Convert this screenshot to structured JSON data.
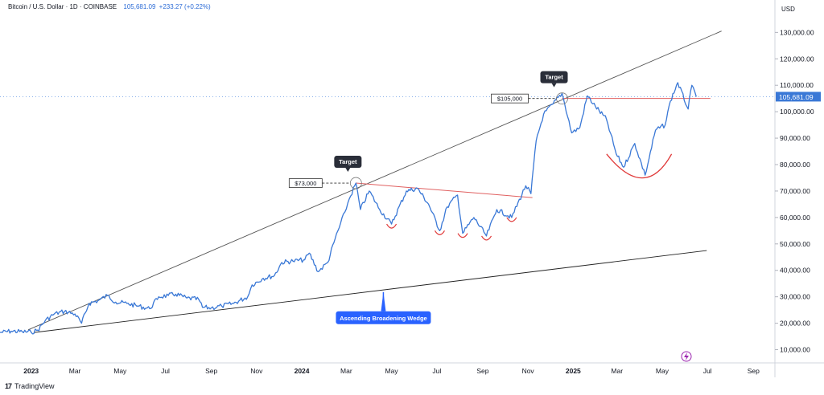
{
  "header": {
    "symbol_line": "Bitcoin / U.S. Dollar · 1D · COINBASE",
    "last_price": "105,681.09",
    "change": "+233.27 (+0.22%)"
  },
  "brand": {
    "logo": "17",
    "name": "TradingView"
  },
  "colors": {
    "price_line": "#3a78d6",
    "trend_line": "#555555",
    "resistance": "#e06060",
    "cup": "#e03a3a",
    "axis_text": "#131722",
    "grid": "#e6e6e6",
    "callout": "#2a2e39",
    "wedge_badge": "#2962ff"
  },
  "chart_data": {
    "type": "line",
    "title": "Bitcoin / U.S. Dollar · 1D · COINBASE",
    "currency_label": "USD",
    "xlim": [
      "2022-11-20",
      "2025-09-30"
    ],
    "ylim": [
      5000,
      138000
    ],
    "y_ticks": [
      10000,
      20000,
      30000,
      40000,
      50000,
      60000,
      70000,
      80000,
      90000,
      100000,
      110000,
      120000,
      130000
    ],
    "y_tick_labels": [
      "10,000.00",
      "20,000.00",
      "30,000.00",
      "40,000.00",
      "50,000.00",
      "60,000.00",
      "70,000.00",
      "80,000.00",
      "90,000.00",
      "100,000.00",
      "110,000.00",
      "120,000.00",
      "130,000.00"
    ],
    "x_ticks": [
      {
        "date": "2023-01-01",
        "label": "2023",
        "bold": true
      },
      {
        "date": "2023-03-01",
        "label": "Mar"
      },
      {
        "date": "2023-05-01",
        "label": "May"
      },
      {
        "date": "2023-07-01",
        "label": "Jul"
      },
      {
        "date": "2023-09-01",
        "label": "Sep"
      },
      {
        "date": "2023-11-01",
        "label": "Nov"
      },
      {
        "date": "2024-01-01",
        "label": "2024",
        "bold": true
      },
      {
        "date": "2024-03-01",
        "label": "Mar"
      },
      {
        "date": "2024-05-01",
        "label": "May"
      },
      {
        "date": "2024-07-01",
        "label": "Jul"
      },
      {
        "date": "2024-09-01",
        "label": "Sep"
      },
      {
        "date": "2024-11-01",
        "label": "Nov"
      },
      {
        "date": "2025-01-01",
        "label": "2025",
        "bold": true
      },
      {
        "date": "2025-03-01",
        "label": "Mar"
      },
      {
        "date": "2025-05-01",
        "label": "May"
      },
      {
        "date": "2025-07-01",
        "label": "Jul"
      },
      {
        "date": "2025-09-01",
        "label": "Sep"
      }
    ],
    "series": [
      {
        "values": [
          [
            "2022-11-20",
            16500
          ],
          [
            "2022-12-05",
            17000
          ],
          [
            "2022-12-20",
            16800
          ],
          [
            "2023-01-01",
            16600
          ],
          [
            "2023-01-10",
            17400
          ],
          [
            "2023-01-20",
            21000
          ],
          [
            "2023-02-01",
            23500
          ],
          [
            "2023-02-15",
            24500
          ],
          [
            "2023-03-01",
            23500
          ],
          [
            "2023-03-10",
            20000
          ],
          [
            "2023-03-20",
            27500
          ],
          [
            "2023-04-01",
            28500
          ],
          [
            "2023-04-14",
            30500
          ],
          [
            "2023-04-25",
            28000
          ],
          [
            "2023-05-10",
            27500
          ],
          [
            "2023-05-25",
            26500
          ],
          [
            "2023-06-10",
            25500
          ],
          [
            "2023-06-22",
            30000
          ],
          [
            "2023-07-05",
            30500
          ],
          [
            "2023-07-15",
            31000
          ],
          [
            "2023-07-30",
            29500
          ],
          [
            "2023-08-15",
            29000
          ],
          [
            "2023-08-20",
            26000
          ],
          [
            "2023-09-01",
            25800
          ],
          [
            "2023-09-15",
            26500
          ],
          [
            "2023-10-01",
            27500
          ],
          [
            "2023-10-20",
            30000
          ],
          [
            "2023-10-26",
            34500
          ],
          [
            "2023-11-10",
            37000
          ],
          [
            "2023-11-25",
            38000
          ],
          [
            "2023-12-05",
            43000
          ],
          [
            "2023-12-20",
            43500
          ],
          [
            "2024-01-05",
            44000
          ],
          [
            "2024-01-11",
            46500
          ],
          [
            "2024-01-23",
            39500
          ],
          [
            "2024-02-05",
            43000
          ],
          [
            "2024-02-15",
            52000
          ],
          [
            "2024-02-28",
            62000
          ],
          [
            "2024-03-05",
            67000
          ],
          [
            "2024-03-14",
            73000
          ],
          [
            "2024-03-20",
            63000
          ],
          [
            "2024-04-01",
            70000
          ],
          [
            "2024-04-15",
            63000
          ],
          [
            "2024-05-01",
            57500
          ],
          [
            "2024-05-21",
            70000
          ],
          [
            "2024-06-05",
            71000
          ],
          [
            "2024-06-20",
            65000
          ],
          [
            "2024-07-05",
            55000
          ],
          [
            "2024-07-15",
            64000
          ],
          [
            "2024-07-29",
            68500
          ],
          [
            "2024-08-05",
            54000
          ],
          [
            "2024-08-20",
            60000
          ],
          [
            "2024-09-06",
            53000
          ],
          [
            "2024-09-20",
            63000
          ],
          [
            "2024-10-10",
            60000
          ],
          [
            "2024-10-29",
            72000
          ],
          [
            "2024-11-05",
            69000
          ],
          [
            "2024-11-12",
            89000
          ],
          [
            "2024-11-22",
            99000
          ],
          [
            "2024-12-05",
            103000
          ],
          [
            "2024-12-17",
            107000
          ],
          [
            "2024-12-30",
            92000
          ],
          [
            "2025-01-10",
            94000
          ],
          [
            "2025-01-20",
            106000
          ],
          [
            "2025-01-31",
            102000
          ],
          [
            "2025-02-15",
            97000
          ],
          [
            "2025-02-28",
            84000
          ],
          [
            "2025-03-10",
            79000
          ],
          [
            "2025-03-25",
            88000
          ],
          [
            "2025-04-08",
            76000
          ],
          [
            "2025-04-22",
            93000
          ],
          [
            "2025-05-05",
            95000
          ],
          [
            "2025-05-12",
            104000
          ],
          [
            "2025-05-22",
            111000
          ],
          [
            "2025-06-05",
            101000
          ],
          [
            "2025-06-10",
            110000
          ],
          [
            "2025-06-16",
            105681
          ]
        ]
      }
    ],
    "last_price_label": "105,681.09",
    "last_price_value": 105681,
    "trendlines": {
      "upper": [
        [
          "2022-12-28",
          17500
        ],
        [
          "2025-07-20",
          130500
        ]
      ],
      "lower": [
        [
          "2023-01-05",
          16500
        ],
        [
          "2025-06-30",
          47500
        ]
      ],
      "resistance_2024": [
        [
          "2024-03-14",
          73000
        ],
        [
          "2024-11-07",
          67500
        ]
      ],
      "resistance_2025": [
        [
          "2024-12-17",
          105000
        ],
        [
          "2025-07-05",
          105000
        ]
      ]
    },
    "dips": [
      [
        "2024-05-01",
        57500
      ],
      [
        "2024-07-05",
        55000
      ],
      [
        "2024-08-05",
        54000
      ],
      [
        "2024-09-06",
        53000
      ],
      [
        "2024-10-10",
        60000
      ]
    ],
    "cup": {
      "start": [
        "2025-02-15",
        84000
      ],
      "bottom": [
        "2025-04-08",
        75000
      ],
      "end": [
        "2025-05-05",
        84000
      ]
    },
    "annotations": [
      {
        "type": "target",
        "label": "Target",
        "date": "2024-03-14",
        "value": 73000,
        "price_label": "$73,000"
      },
      {
        "type": "target",
        "label": "Target",
        "date": "2024-12-17",
        "value": 105000,
        "price_label": "$105,000"
      },
      {
        "type": "pattern",
        "label": "Ascending Broadening Wedge",
        "date": "2024-04-20",
        "value": 33000
      }
    ]
  }
}
